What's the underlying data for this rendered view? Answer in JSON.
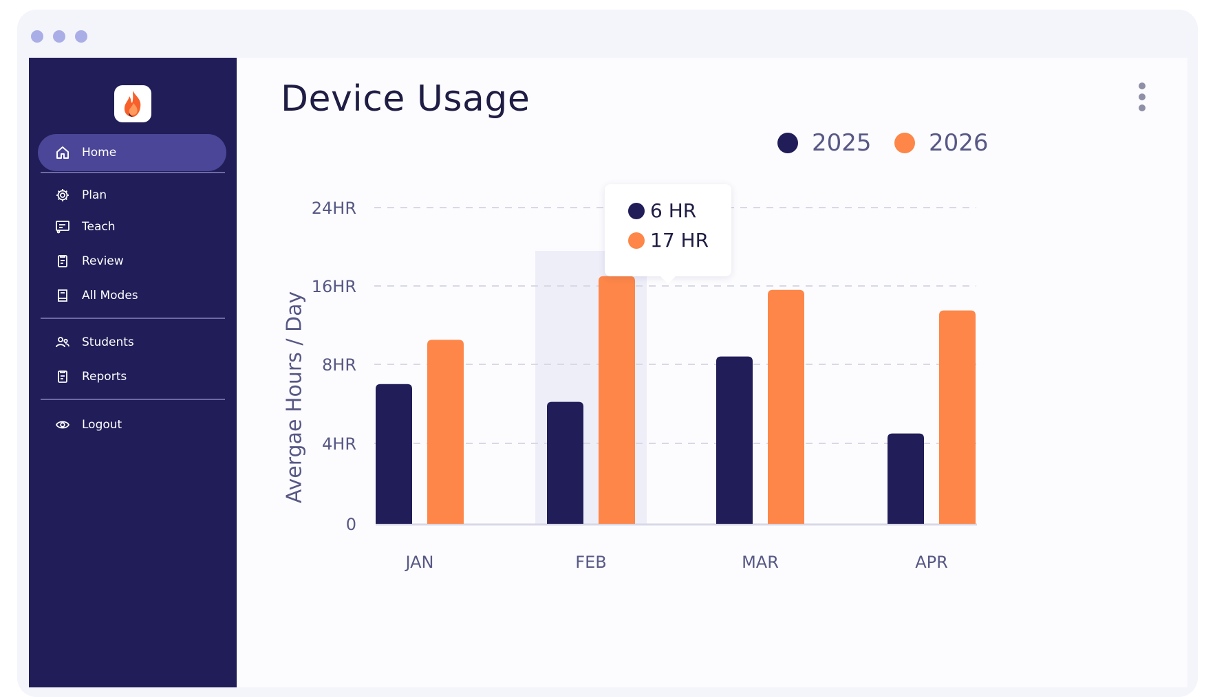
{
  "window": {
    "dots": [
      "dot",
      "dot",
      "dot"
    ]
  },
  "sidebar": {
    "logo_icon": "flame-logo-icon",
    "items": [
      {
        "label": "Home",
        "icon": "home-icon",
        "active": true
      },
      {
        "label": "Plan",
        "icon": "gear-icon"
      },
      {
        "label": "Teach",
        "icon": "presentation-icon"
      },
      {
        "label": "Review",
        "icon": "clipboard-icon"
      },
      {
        "label": "All Modes",
        "icon": "book-icon"
      },
      {
        "label": "Students",
        "icon": "users-icon"
      },
      {
        "label": "Reports",
        "icon": "report-icon"
      },
      {
        "label": "Logout",
        "icon": "eye-icon"
      }
    ]
  },
  "main": {
    "title": "Device Usage",
    "tooltip": {
      "series1_text": "6 HR",
      "series2_text": "17 HR"
    }
  },
  "colors": {
    "series_2025": "#201d58",
    "series_2026": "#fd8648",
    "highlight": "#eeeef9",
    "grid": "#d8d8e6",
    "axis_text": "#575885"
  },
  "chart_data": {
    "type": "bar",
    "title": "Device Usage",
    "ylabel": "Avergae Hours / Day",
    "xlabel": "",
    "categories": [
      "JAN",
      "FEB",
      "MAR",
      "APR"
    ],
    "y_ticks": [
      {
        "label": "0",
        "value": 0
      },
      {
        "label": "4HR",
        "value": 4
      },
      {
        "label": "8HR",
        "value": 8
      },
      {
        "label": "16HR",
        "value": 16
      },
      {
        "label": "24HR",
        "value": 24
      }
    ],
    "series": [
      {
        "name": "2025",
        "values": [
          7,
          6.1,
          8.8,
          4.5
        ]
      },
      {
        "name": "2026",
        "values": [
          10.5,
          17,
          15.6,
          13.5
        ]
      }
    ],
    "highlighted_category": "FEB",
    "legend": "top-right",
    "grid": true
  }
}
